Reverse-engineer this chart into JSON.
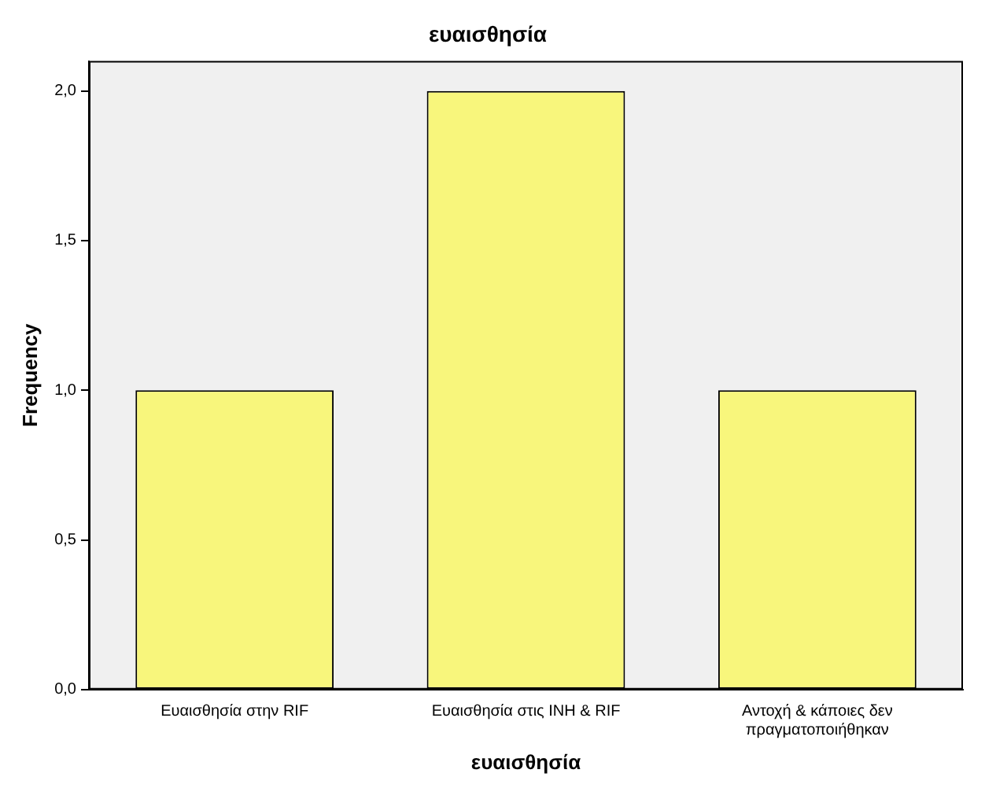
{
  "chart_data": {
    "type": "bar",
    "title": "ευαισθησία",
    "xlabel": "ευαισθησία",
    "ylabel": "Frequency",
    "categories": [
      "Ευαισθησία στην RIF",
      "Ευαισθησία στις INH & RIF",
      "Αντοχή & κάποιες δεν πραγματοποιήθηκαν"
    ],
    "values": [
      1,
      2,
      1
    ],
    "color": "#f8f67c",
    "ylim": [
      0,
      2.1
    ],
    "yticks": [
      {
        "value": 0,
        "label": "0,0"
      },
      {
        "value": 0.5,
        "label": "0,5"
      },
      {
        "value": 1,
        "label": "1,0"
      },
      {
        "value": 1.5,
        "label": "1,5"
      },
      {
        "value": 2,
        "label": "2,0"
      }
    ],
    "grid": false,
    "legend": false
  }
}
